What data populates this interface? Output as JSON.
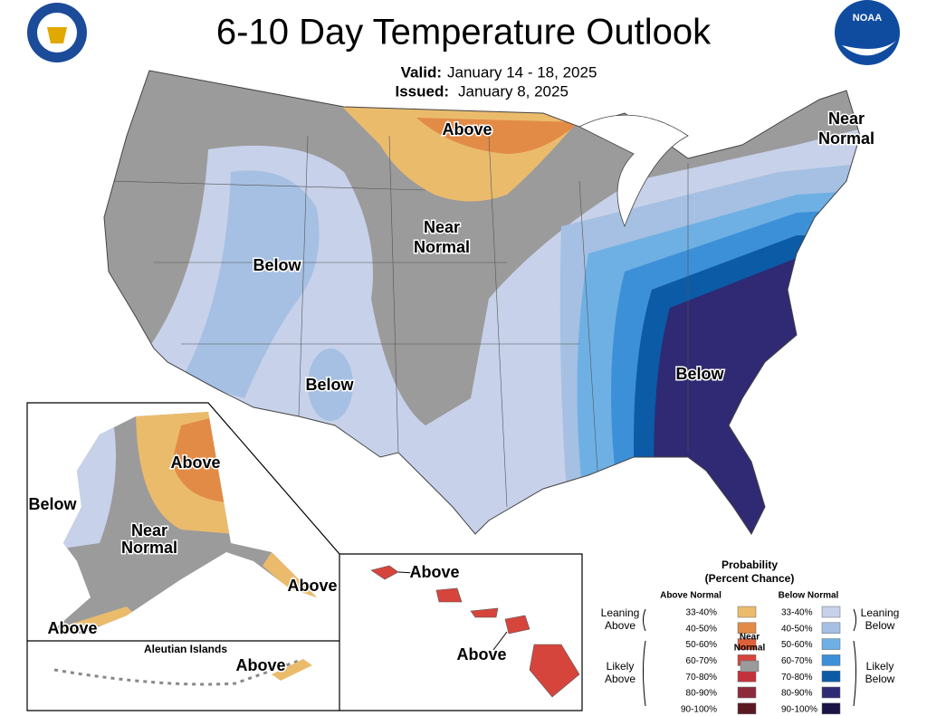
{
  "header": {
    "title": "6-10 Day Temperature Outlook",
    "valid_label": "Valid:",
    "valid": "January 14 - 18, 2025",
    "issued_label": "Issued:",
    "issued": "January 8, 2025",
    "logo_text": "NOAA"
  },
  "map_labels": [
    {
      "lines": [
        "Above"
      ]
    },
    {
      "lines": [
        "Near",
        "Normal"
      ]
    },
    {
      "lines": [
        "Near",
        "Normal"
      ]
    },
    {
      "lines": [
        "Below"
      ]
    },
    {
      "lines": [
        "Below"
      ]
    },
    {
      "lines": [
        "Below"
      ]
    },
    {
      "lines": [
        "Above"
      ]
    },
    {
      "lines": [
        "Below"
      ]
    },
    {
      "lines": [
        "Near",
        "Normal"
      ]
    },
    {
      "lines": [
        "Above"
      ]
    },
    {
      "lines": [
        "Above"
      ]
    },
    {
      "lines": [
        "Above"
      ]
    },
    {
      "lines": [
        "Above"
      ]
    },
    {
      "lines": [
        "Above"
      ]
    }
  ],
  "inset_title": "Aleutian Islands",
  "legend": {
    "title": "Probability",
    "subtitle": "(Percent Chance)",
    "above_header": "Above Normal",
    "below_header": "Below Normal",
    "near_label": [
      "Near",
      "Normal"
    ],
    "near_color": "#9b9b9b",
    "leaning_above": [
      "Leaning",
      "Above"
    ],
    "likely_above": [
      "Likely",
      "Above"
    ],
    "leaning_below": [
      "Leaning",
      "Below"
    ],
    "likely_below": [
      "Likely",
      "Below"
    ],
    "above": [
      {
        "range": "33-40%",
        "color": "#ebbb6c"
      },
      {
        "range": "40-50%",
        "color": "#e28b47"
      },
      {
        "range": "50-60%",
        "color": "#e0603a"
      },
      {
        "range": "60-70%",
        "color": "#d6453c"
      },
      {
        "range": "70-80%",
        "color": "#c5313b"
      },
      {
        "range": "80-90%",
        "color": "#8e2b3b"
      },
      {
        "range": "90-100%",
        "color": "#5b1a22"
      }
    ],
    "below": [
      {
        "range": "33-40%",
        "color": "#c7d1ea"
      },
      {
        "range": "40-50%",
        "color": "#a5c0e2"
      },
      {
        "range": "50-60%",
        "color": "#6eb0e4"
      },
      {
        "range": "60-70%",
        "color": "#3c90d8"
      },
      {
        "range": "70-80%",
        "color": "#0b5ba7"
      },
      {
        "range": "80-90%",
        "color": "#2f2a73"
      },
      {
        "range": "90-100%",
        "color": "#1b1545"
      }
    ]
  }
}
